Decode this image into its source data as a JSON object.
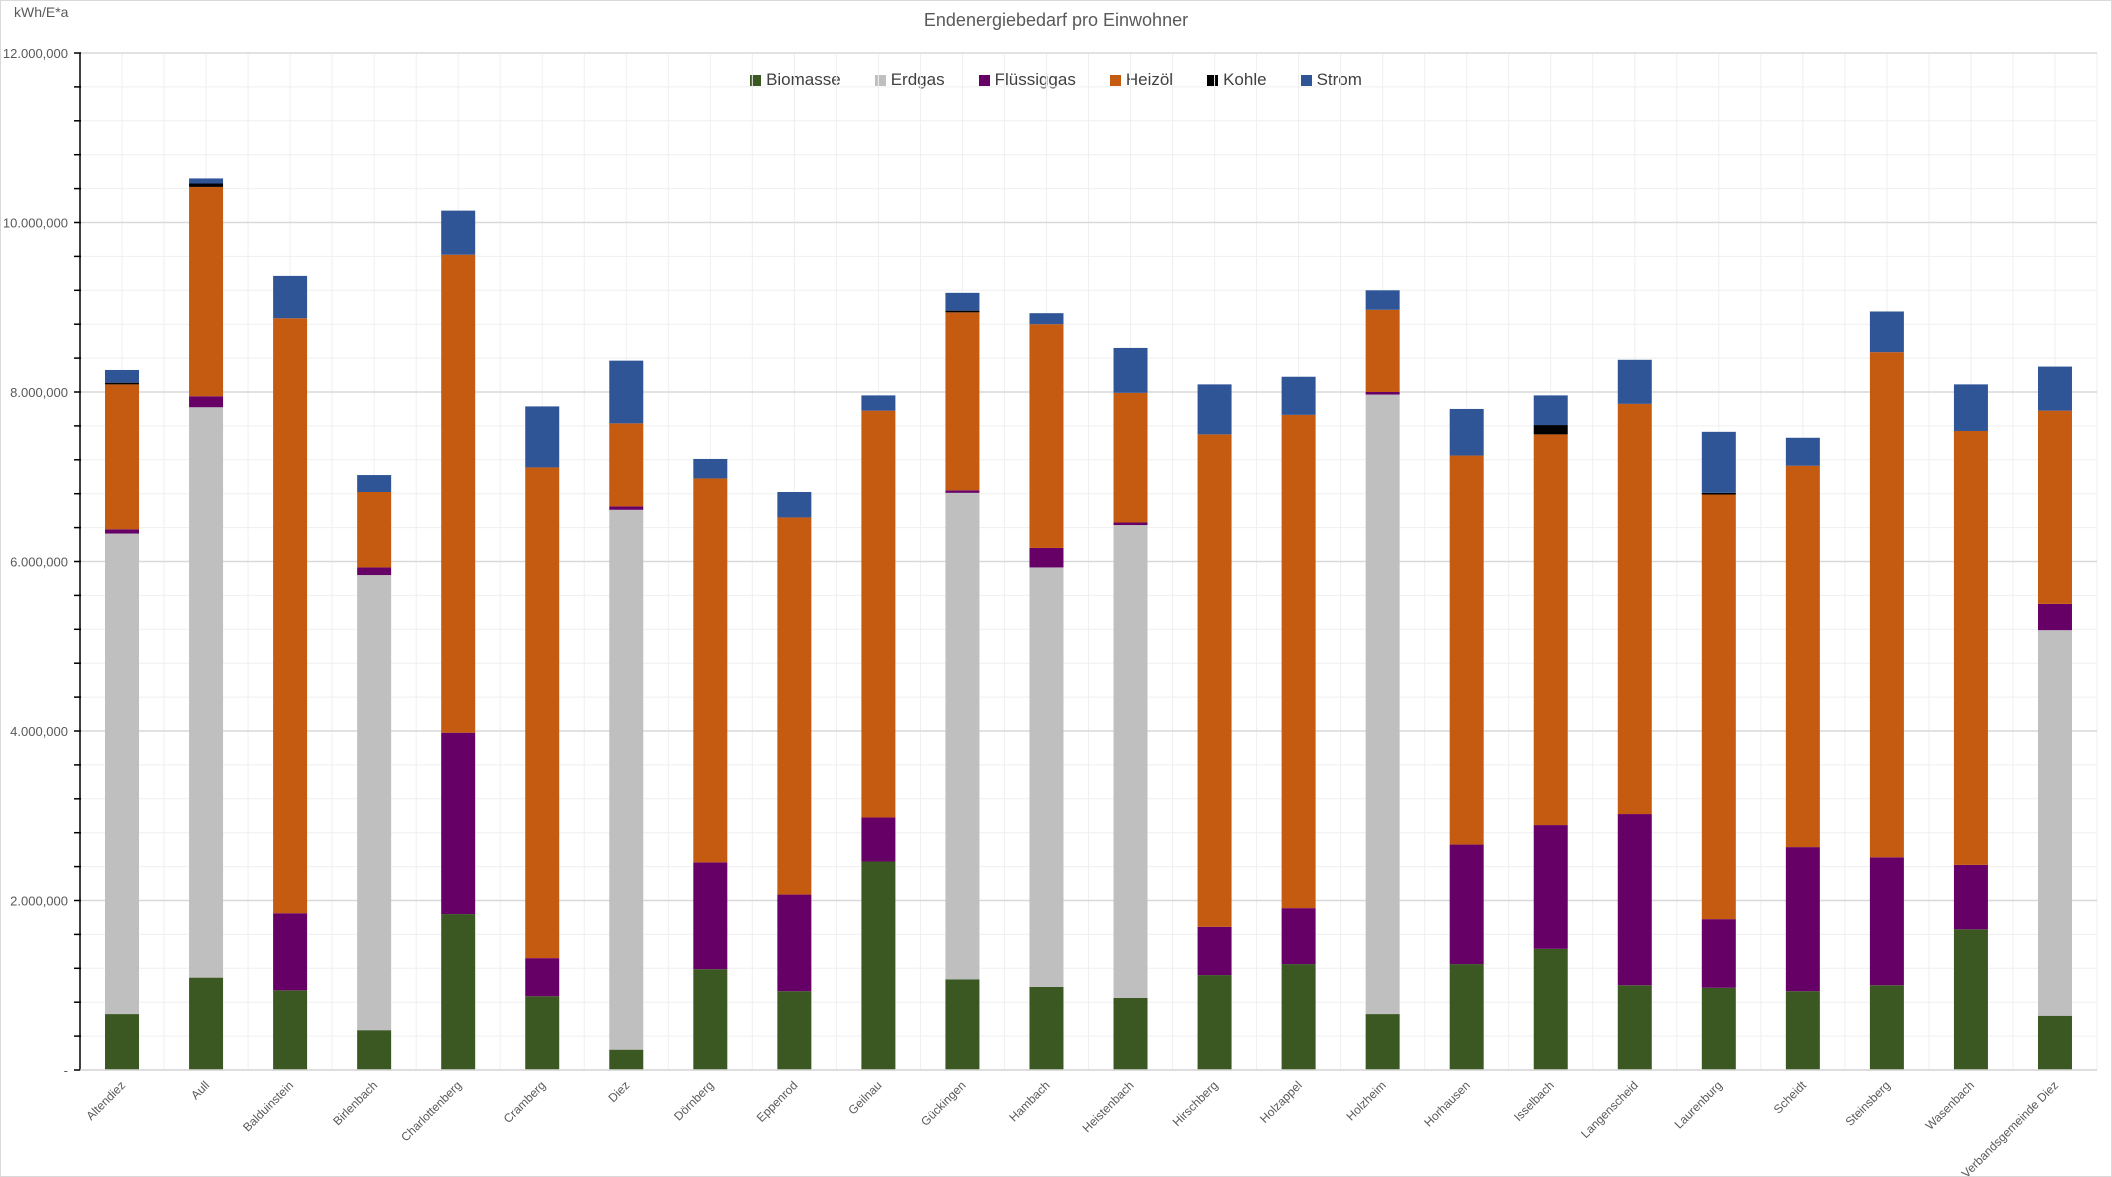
{
  "unit_label": "kWh/E*a",
  "chart_data": {
    "type": "bar",
    "stacked": true,
    "title": "Endenergiebedarf pro Einwohner",
    "xlabel": "",
    "ylabel": "kWh/E*a",
    "ylim": [
      0,
      12000000
    ],
    "ymajor": 2000000,
    "yminor": 400000,
    "ytick_labels": [
      "-",
      "2.000,000",
      "4.000,000",
      "6.000,000",
      "8.000,000",
      "10.000,000",
      "12.000,000"
    ],
    "grid": true,
    "legend_position": "top-center",
    "categories": [
      "Altendiez",
      "Aull",
      "Balduinstein",
      "Birlenbach",
      "Charlottenberg",
      "Cramberg",
      "Diez",
      "Dörnberg",
      "Eppenrod",
      "Geilnau",
      "Gückingen",
      "Hambach",
      "Heistenbach",
      "Hirschberg",
      "Holzappel",
      "Holzheim",
      "Horhausen",
      "Isselbach",
      "Langenscheid",
      "Laurenburg",
      "Scheidt",
      "Steinsberg",
      "Wasenbach",
      "Verbandsgemeinde Diez"
    ],
    "series": [
      {
        "name": "Biomasse",
        "color": "#3b5823",
        "values": [
          660000,
          1090000,
          940000,
          470000,
          1840000,
          870000,
          240000,
          1190000,
          930000,
          2460000,
          1070000,
          980000,
          850000,
          1120000,
          1250000,
          660000,
          1250000,
          1430000,
          1000000,
          970000,
          930000,
          1000000,
          1660000,
          640000
        ]
      },
      {
        "name": "Erdgas",
        "color": "#bfbfbf",
        "values": [
          5670000,
          6730000,
          0,
          5370000,
          0,
          0,
          6370000,
          0,
          0,
          0,
          5740000,
          4950000,
          5580000,
          0,
          0,
          7310000,
          0,
          0,
          0,
          0,
          0,
          0,
          0,
          4550000
        ]
      },
      {
        "name": "Flüssiggas",
        "color": "#660066",
        "values": [
          50000,
          130000,
          910000,
          90000,
          2140000,
          450000,
          40000,
          1260000,
          1140000,
          520000,
          30000,
          230000,
          30000,
          570000,
          660000,
          30000,
          1410000,
          1460000,
          2020000,
          810000,
          1700000,
          1510000,
          760000,
          310000
        ]
      },
      {
        "name": "Heizöl",
        "color": "#c55a11",
        "values": [
          1710000,
          2470000,
          7020000,
          890000,
          5640000,
          5790000,
          980000,
          4530000,
          4450000,
          4800000,
          2100000,
          2640000,
          1530000,
          5810000,
          5820000,
          970000,
          4590000,
          4610000,
          4840000,
          5010000,
          4500000,
          5960000,
          5120000,
          2280000
        ]
      },
      {
        "name": "Kohle",
        "color": "#000000",
        "values": [
          20000,
          40000,
          0,
          0,
          0,
          0,
          0,
          0,
          0,
          0,
          20000,
          0,
          0,
          0,
          0,
          0,
          0,
          110000,
          0,
          20000,
          0,
          0,
          0,
          0
        ]
      },
      {
        "name": "Strom",
        "color": "#2f5597",
        "values": [
          150000,
          60000,
          500000,
          200000,
          520000,
          720000,
          740000,
          230000,
          300000,
          180000,
          210000,
          130000,
          530000,
          590000,
          450000,
          230000,
          550000,
          350000,
          520000,
          720000,
          330000,
          480000,
          550000,
          520000
        ]
      }
    ]
  }
}
